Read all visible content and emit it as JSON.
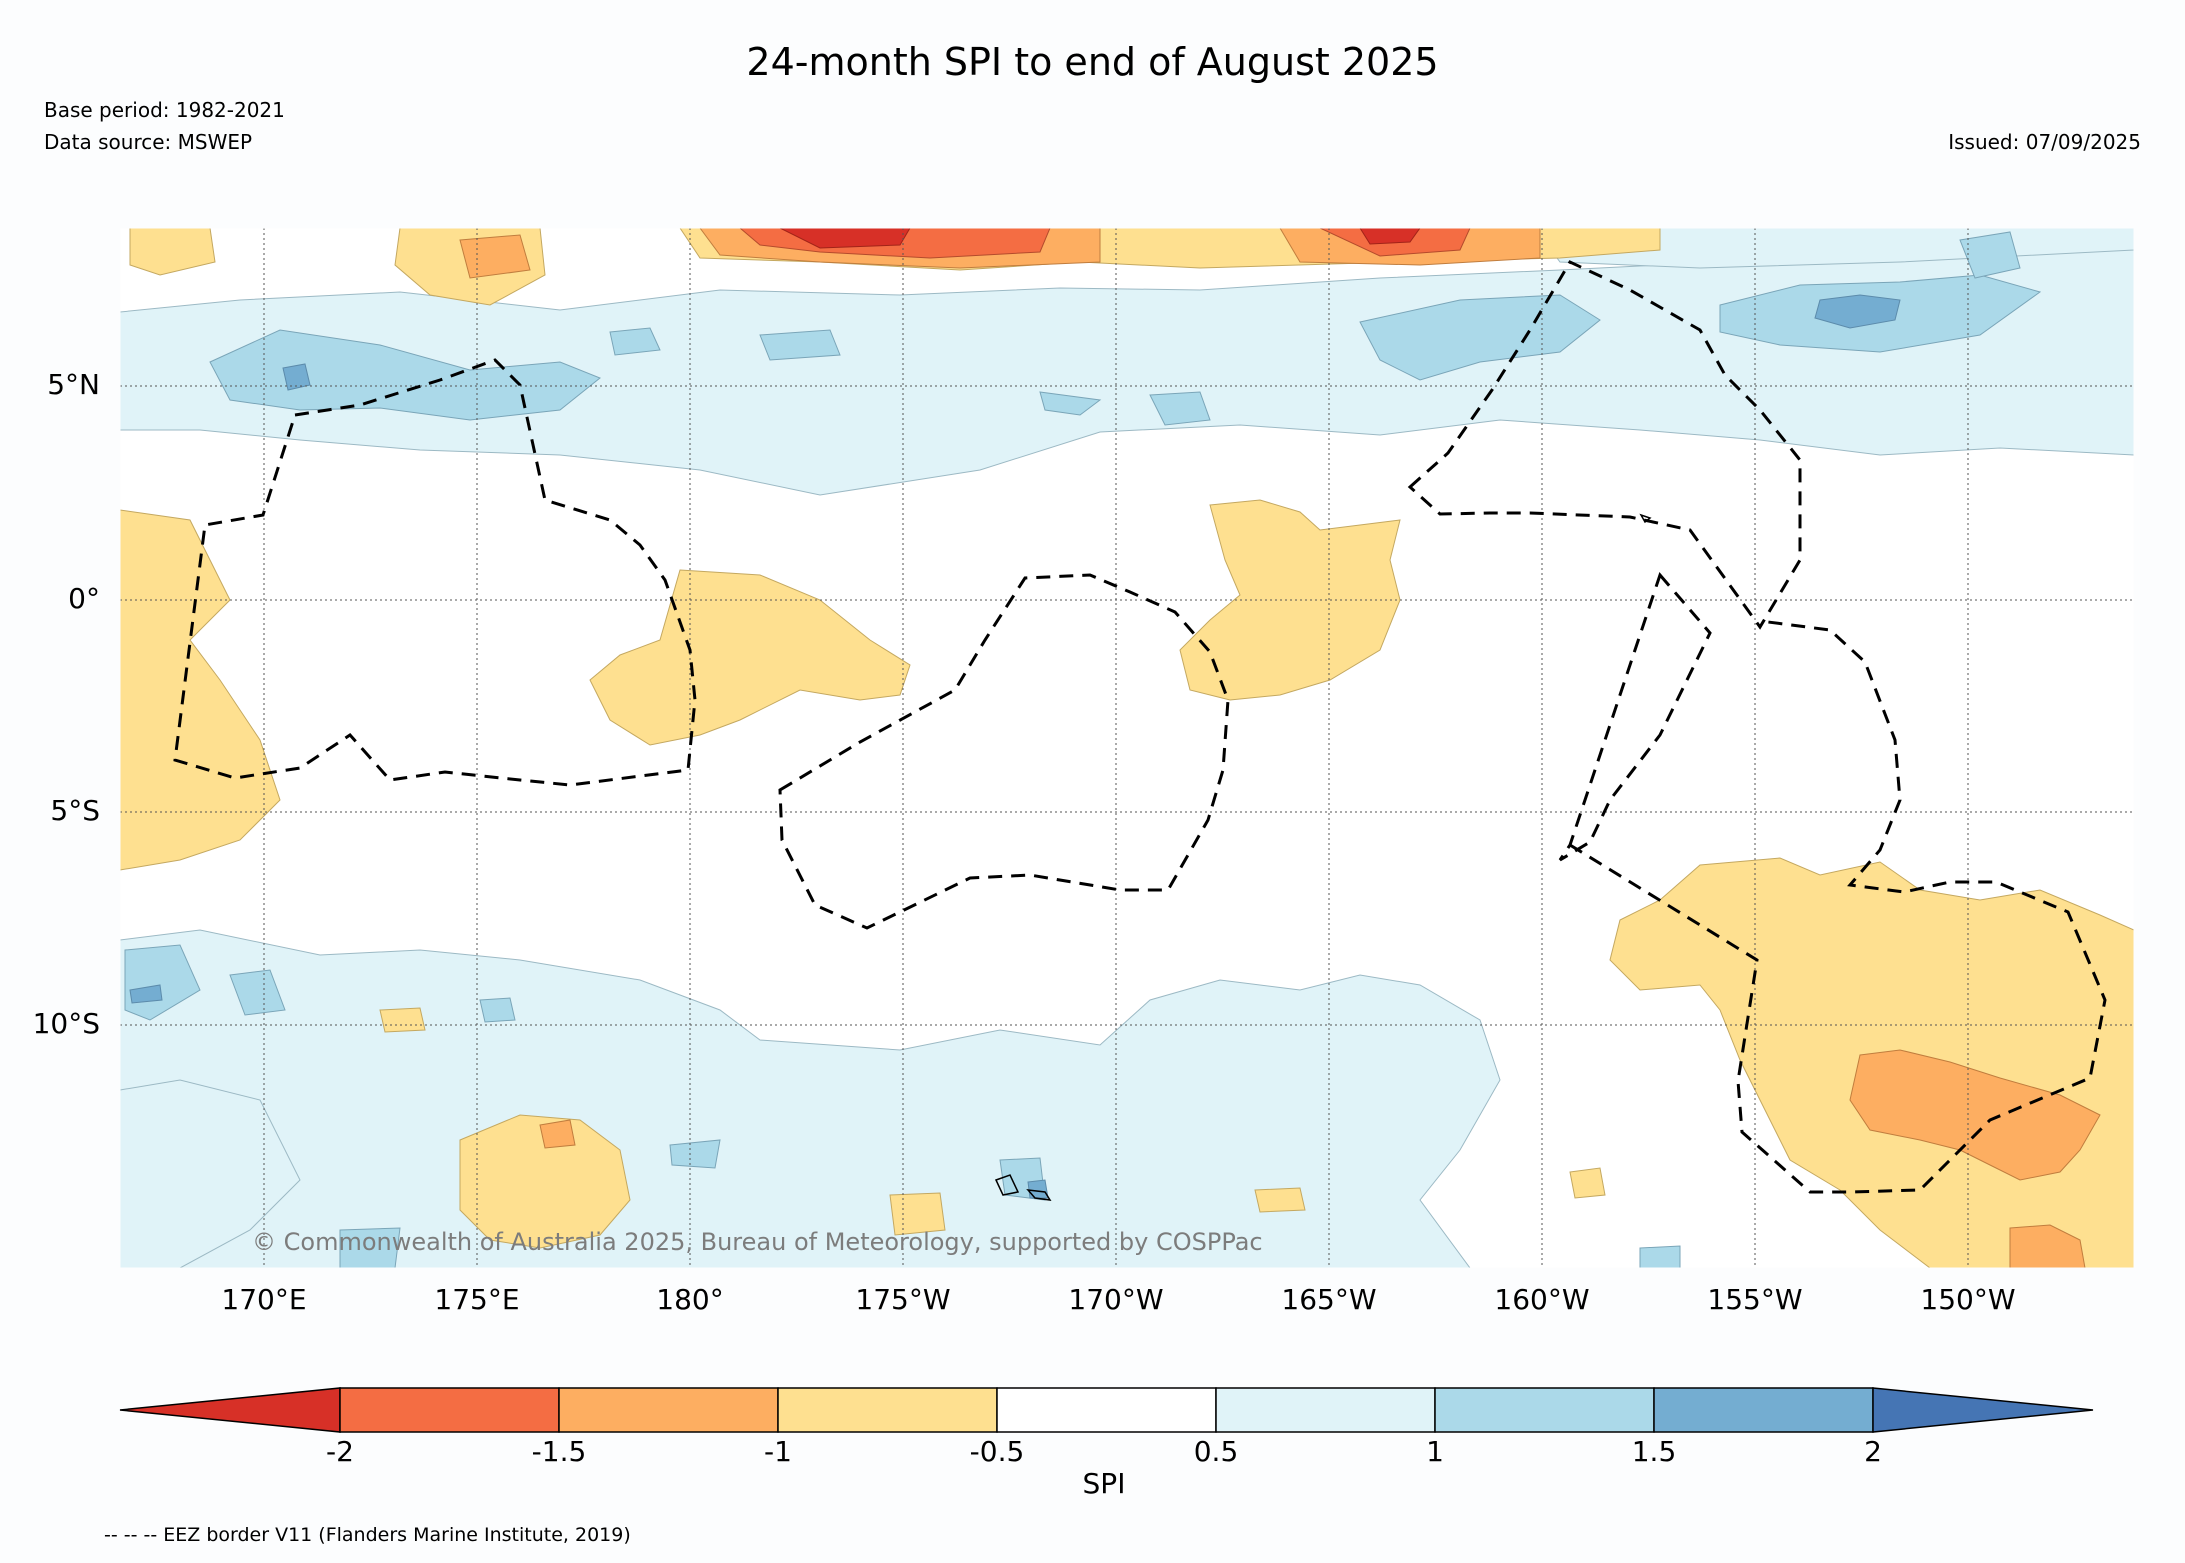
{
  "title": "24-month SPI to end of August 2025",
  "base_period": "Base period: 1982-2021",
  "data_source": "Data source: MSWEP",
  "issued": "Issued: 07/09/2025",
  "copyright": "© Commonwealth of Australia 2025, Bureau of Meteorology, supported by COSPPac",
  "map": {
    "lat_range": [
      -15.5,
      8.8
    ],
    "lon_range": [
      166.6,
      213.9
    ],
    "lat_labels": [
      {
        "text": "5°N",
        "lat": 5
      },
      {
        "text": "0°",
        "lat": 0
      },
      {
        "text": "5°S",
        "lat": -5
      },
      {
        "text": "10°S",
        "lat": -10
      }
    ],
    "lon_labels": [
      {
        "text": "170°E",
        "lon": 170
      },
      {
        "text": "175°E",
        "lon": 175
      },
      {
        "text": "180°",
        "lon": 180
      },
      {
        "text": "175°W",
        "lon": 185
      },
      {
        "text": "170°W",
        "lon": 190
      },
      {
        "text": "165°W",
        "lon": 195
      },
      {
        "text": "160°W",
        "lon": 200
      },
      {
        "text": "155°W",
        "lon": 205
      },
      {
        "text": "150°W",
        "lon": 210
      }
    ]
  },
  "colorbar": {
    "label": "SPI",
    "tick_labels": [
      "-2",
      "-1.5",
      "-1",
      "-0.5",
      "0.5",
      "1",
      "1.5",
      "2"
    ],
    "tick_values": [
      -2,
      -1.5,
      -1,
      -0.5,
      0.5,
      1,
      1.5,
      2
    ],
    "colors": {
      "below_-2": "#d73027",
      "-2_to_-1.5": "#f46d43",
      "-1.5_to_-1": "#fdae61",
      "-1_to_-0.5": "#fee090",
      "-0.5_to_0.5": "#ffffff",
      "0.5_to_1": "#e0f3f8",
      "1_to_1.5": "#abd9e9",
      "1.5_to_2": "#74add1",
      "above_2": "#4575b4"
    }
  },
  "legend_note": "-- -- -- EEZ border V11 (Flanders Marine Institute, 2019)"
}
